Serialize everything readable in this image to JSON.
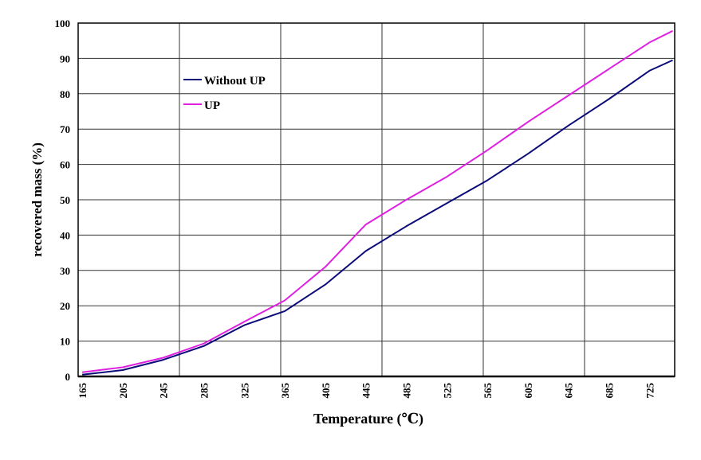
{
  "chart_data": {
    "type": "line",
    "title": "",
    "xlabel": "Temperature (℃)",
    "ylabel": "recovered mass (%)",
    "xlim": [
      161,
      750
    ],
    "ylim": [
      0,
      100
    ],
    "x_ticks": [
      165,
      205,
      245,
      285,
      325,
      365,
      405,
      445,
      485,
      525,
      565,
      605,
      645,
      685,
      725
    ],
    "y_ticks": [
      0,
      10,
      20,
      30,
      40,
      50,
      60,
      70,
      80,
      90,
      100
    ],
    "x_gridlines": [
      261,
      361,
      461,
      561,
      661
    ],
    "grid": true,
    "legend_position": "top-left",
    "x": [
      165,
      205,
      245,
      285,
      325,
      365,
      405,
      445,
      485,
      525,
      565,
      605,
      645,
      685,
      725,
      748
    ],
    "series": [
      {
        "name": "Without UP",
        "color": "#0b0b7a",
        "values": [
          0.5,
          1.8,
          4.7,
          8.6,
          14.5,
          18.5,
          26,
          35.5,
          42.5,
          49,
          55.5,
          63,
          71,
          78.5,
          86.5,
          89.5
        ]
      },
      {
        "name": "UP",
        "color": "#e020e0",
        "values": [
          1.2,
          2.6,
          5.3,
          9.3,
          15.5,
          21.5,
          31,
          43,
          50,
          56.5,
          64,
          72,
          79.5,
          87,
          94.5,
          97.8
        ]
      }
    ]
  }
}
